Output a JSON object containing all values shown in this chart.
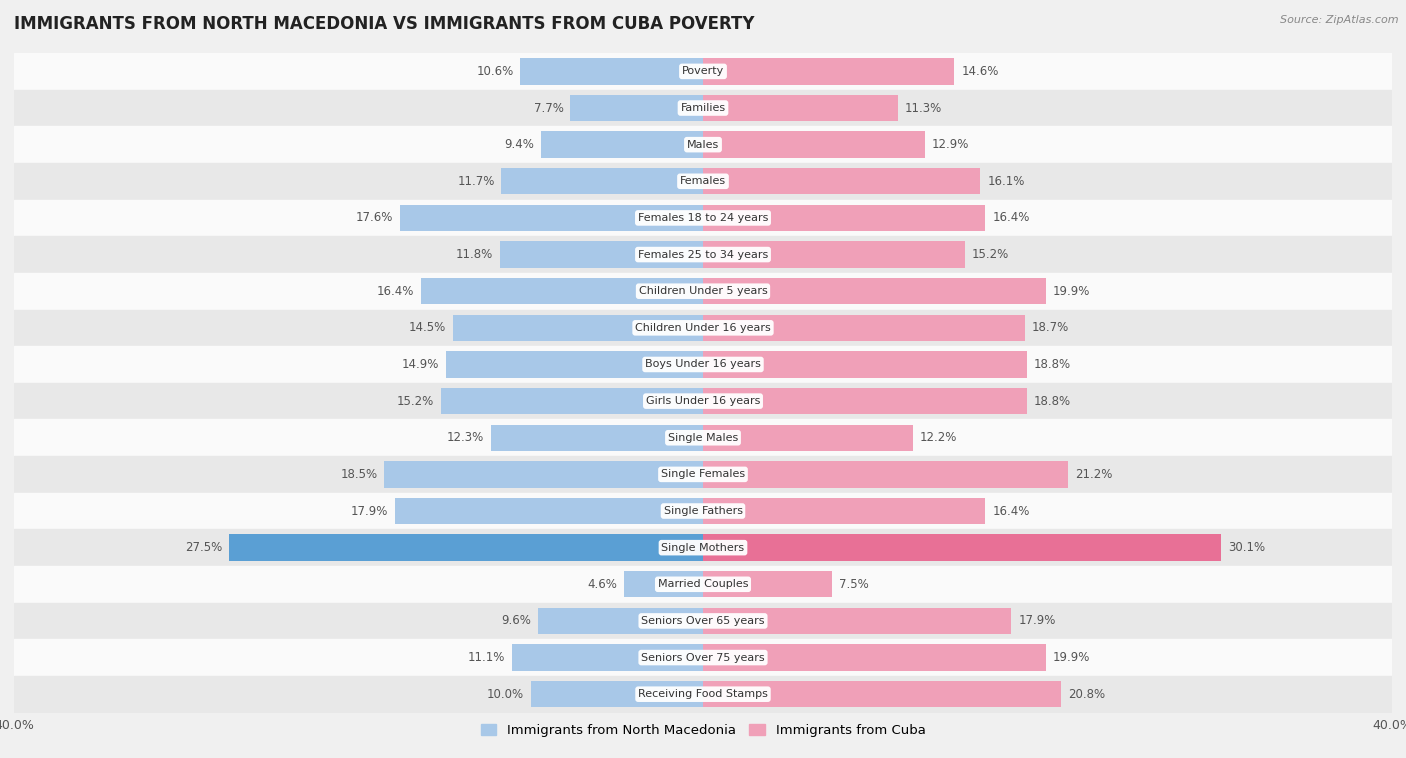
{
  "title": "IMMIGRANTS FROM NORTH MACEDONIA VS IMMIGRANTS FROM CUBA POVERTY",
  "source": "Source: ZipAtlas.com",
  "categories": [
    "Poverty",
    "Families",
    "Males",
    "Females",
    "Females 18 to 24 years",
    "Females 25 to 34 years",
    "Children Under 5 years",
    "Children Under 16 years",
    "Boys Under 16 years",
    "Girls Under 16 years",
    "Single Males",
    "Single Females",
    "Single Fathers",
    "Single Mothers",
    "Married Couples",
    "Seniors Over 65 years",
    "Seniors Over 75 years",
    "Receiving Food Stamps"
  ],
  "north_macedonia": [
    10.6,
    7.7,
    9.4,
    11.7,
    17.6,
    11.8,
    16.4,
    14.5,
    14.9,
    15.2,
    12.3,
    18.5,
    17.9,
    27.5,
    4.6,
    9.6,
    11.1,
    10.0
  ],
  "cuba": [
    14.6,
    11.3,
    12.9,
    16.1,
    16.4,
    15.2,
    19.9,
    18.7,
    18.8,
    18.8,
    12.2,
    21.2,
    16.4,
    30.1,
    7.5,
    17.9,
    19.9,
    20.8
  ],
  "color_macedonia": "#a8c8e8",
  "color_cuba": "#f0a0b8",
  "axis_max": 40.0,
  "background_color": "#f0f0f0",
  "row_bg_white": "#fafafa",
  "row_bg_gray": "#e8e8e8",
  "label_color": "#555555",
  "value_color": "#555555",
  "cat_label_bg": "#ffffff",
  "single_mothers_mac_color": "#5a9fd4",
  "single_mothers_cuba_color": "#e87096"
}
